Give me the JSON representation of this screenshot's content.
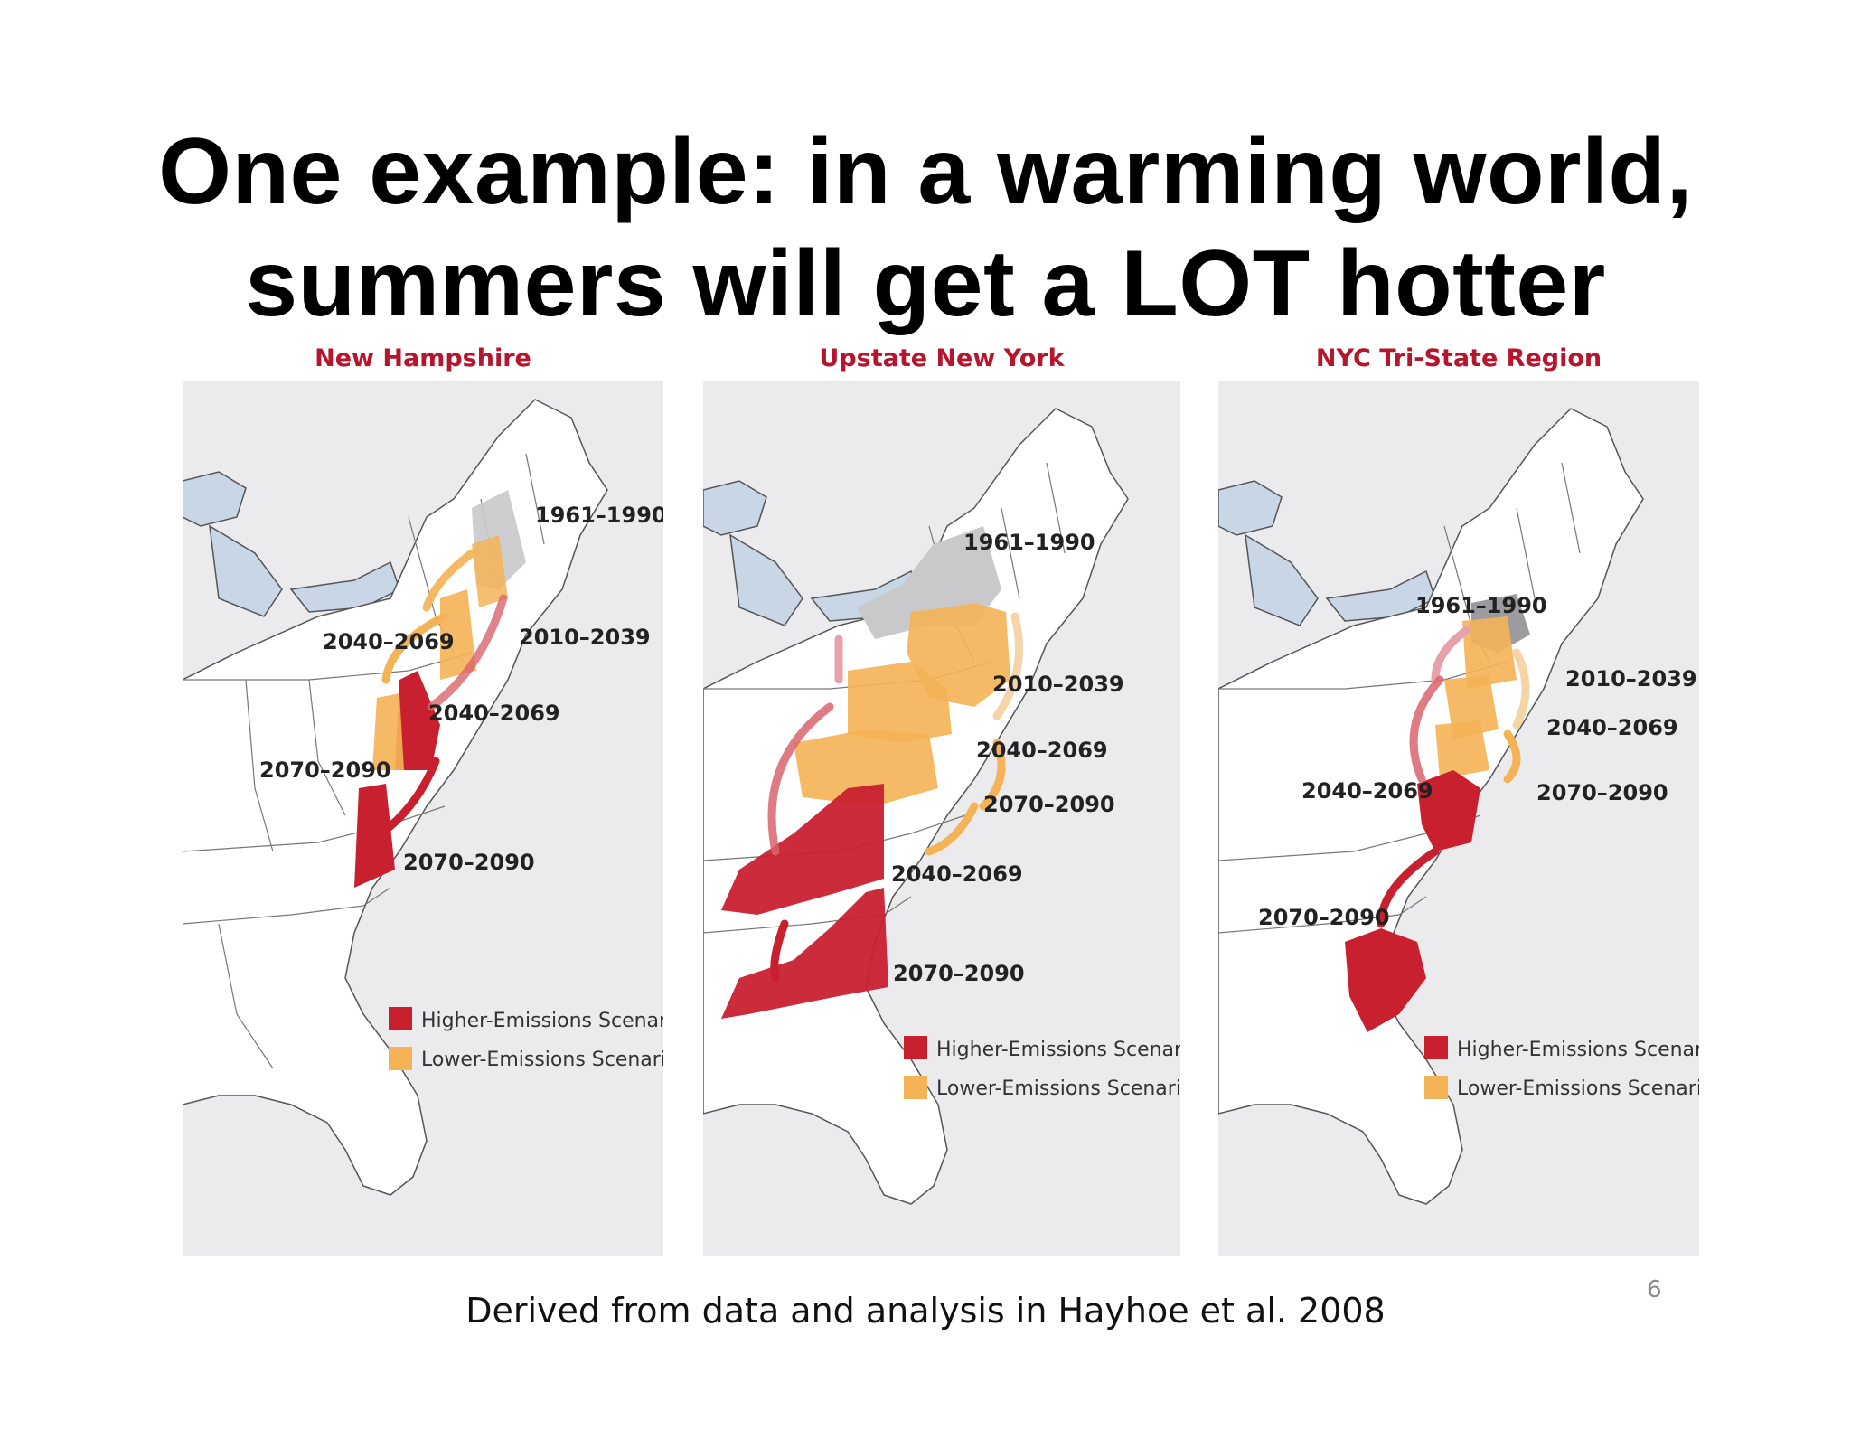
{
  "slide": {
    "title_line1": "One example: in a warming world,",
    "title_line2": "summers will get a LOT hotter",
    "caption": "Derived from data and analysis in Hayhoe et al. 2008",
    "page_number": "6"
  },
  "colors": {
    "higher": "#c8202f",
    "lower": "#f5b357",
    "baseline": "#c9c9cc",
    "panel_bg": "#ebebee",
    "land": "#ffffff",
    "water": "#c9d6e6",
    "title_red": "#b5162e"
  },
  "panels": [
    {
      "title": "New Hampshire",
      "labels": {
        "baseline": "1961–1990",
        "p2010": "2010–2039",
        "p2040_low": "2040–2069",
        "p2040_high": "2040–2069",
        "p2070_low": "2070–2090",
        "p2070_high": "2070–2090"
      },
      "legend": {
        "higher": "Higher-Emissions Scenario",
        "lower": "Lower-Emissions Scenario"
      }
    },
    {
      "title": "Upstate New York",
      "labels": {
        "baseline": "1961–1990",
        "p2010": "2010–2039",
        "p2040_low": "2040–2069",
        "p2070_low": "2070–2090",
        "p2040_high": "2040–2069",
        "p2070_high": "2070–2090"
      },
      "legend": {
        "higher": "Higher-Emissions Scenario",
        "lower": "Lower-Emissions Scenario"
      }
    },
    {
      "title": "NYC Tri-State Region",
      "labels": {
        "baseline": "1961–1990",
        "p2010": "2010–2039",
        "p2040_low": "2040–2069",
        "p2070_low": "2070–2090",
        "p2040_high": "2040–2069",
        "p2070_high": "2070–2090"
      },
      "legend": {
        "higher": "Higher-Emissions Scenario",
        "lower": "Lower-Emissions Scenario"
      }
    }
  ]
}
